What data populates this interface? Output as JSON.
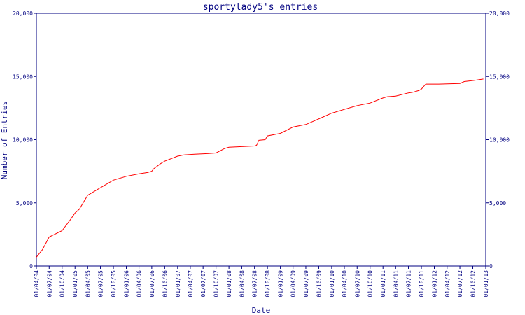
{
  "chart_data": {
    "type": "line",
    "title": "sportylady5's entries",
    "xlabel": "Date",
    "ylabel": "Number of Entries",
    "ylim": [
      0,
      20000
    ],
    "y_ticks": [
      {
        "value": 0,
        "label": "0"
      },
      {
        "value": 5000,
        "label": "5,000"
      },
      {
        "value": 10000,
        "label": "10,000"
      },
      {
        "value": 15000,
        "label": "15,000"
      },
      {
        "value": 20000,
        "label": "20,000"
      }
    ],
    "x_tick_labels": [
      "01/04/04",
      "01/07/04",
      "01/10/04",
      "01/01/05",
      "01/04/05",
      "01/07/05",
      "01/10/05",
      "01/01/06",
      "01/04/06",
      "01/07/06",
      "01/10/06",
      "01/01/07",
      "01/04/07",
      "01/07/07",
      "01/10/07",
      "01/01/08",
      "01/04/08",
      "01/07/08",
      "01/10/08",
      "01/01/09",
      "01/04/09",
      "01/07/09",
      "01/10/09",
      "01/01/10",
      "01/04/10",
      "01/07/10",
      "01/10/10",
      "01/01/11",
      "01/04/11",
      "01/07/11",
      "01/10/11",
      "01/01/12",
      "01/04/12",
      "01/07/12",
      "01/10/12",
      "01/01/13"
    ],
    "grid": false,
    "right_axis": true,
    "series_color": "#ff0000",
    "axis_color": "#000080",
    "series": [
      {
        "x": [
          "01/04/04",
          "15/05/04",
          "01/07/04",
          "01/10/04",
          "01/12/04",
          "01/01/05",
          "01/02/05",
          "01/04/05",
          "01/07/05",
          "01/10/05",
          "01/01/06",
          "01/04/06",
          "01/06/06",
          "01/07/06",
          "15/07/06",
          "01/09/06",
          "01/10/06",
          "01/01/07",
          "15/02/07",
          "01/05/07",
          "01/08/07",
          "01/10/07",
          "01/12/07",
          "01/01/08",
          "01/04/08",
          "01/07/08",
          "15/07/08",
          "01/08/08",
          "15/09/08",
          "01/10/08",
          "01/01/09",
          "01/04/09",
          "01/07/09",
          "01/09/09",
          "01/11/09",
          "01/01/10",
          "01/04/10",
          "01/07/10",
          "01/10/10",
          "01/01/11",
          "01/02/11",
          "01/04/11",
          "01/07/11",
          "01/08/11",
          "15/09/11",
          "01/10/11",
          "01/11/11",
          "01/02/12",
          "01/07/12",
          "01/08/12",
          "15/10/12",
          "15/12/12"
        ],
        "y": [
          700,
          1300,
          2300,
          2800,
          3700,
          4200,
          4500,
          5600,
          6200,
          6800,
          7100,
          7300,
          7400,
          7500,
          7700,
          8100,
          8300,
          8700,
          8800,
          8850,
          8900,
          8950,
          9300,
          9400,
          9450,
          9500,
          9550,
          9950,
          10000,
          10300,
          10500,
          11000,
          11200,
          11500,
          11800,
          12100,
          12400,
          12700,
          12900,
          13300,
          13400,
          13450,
          13700,
          13750,
          13900,
          14000,
          14400,
          14400,
          14450,
          14600,
          14700,
          14800
        ]
      }
    ]
  }
}
